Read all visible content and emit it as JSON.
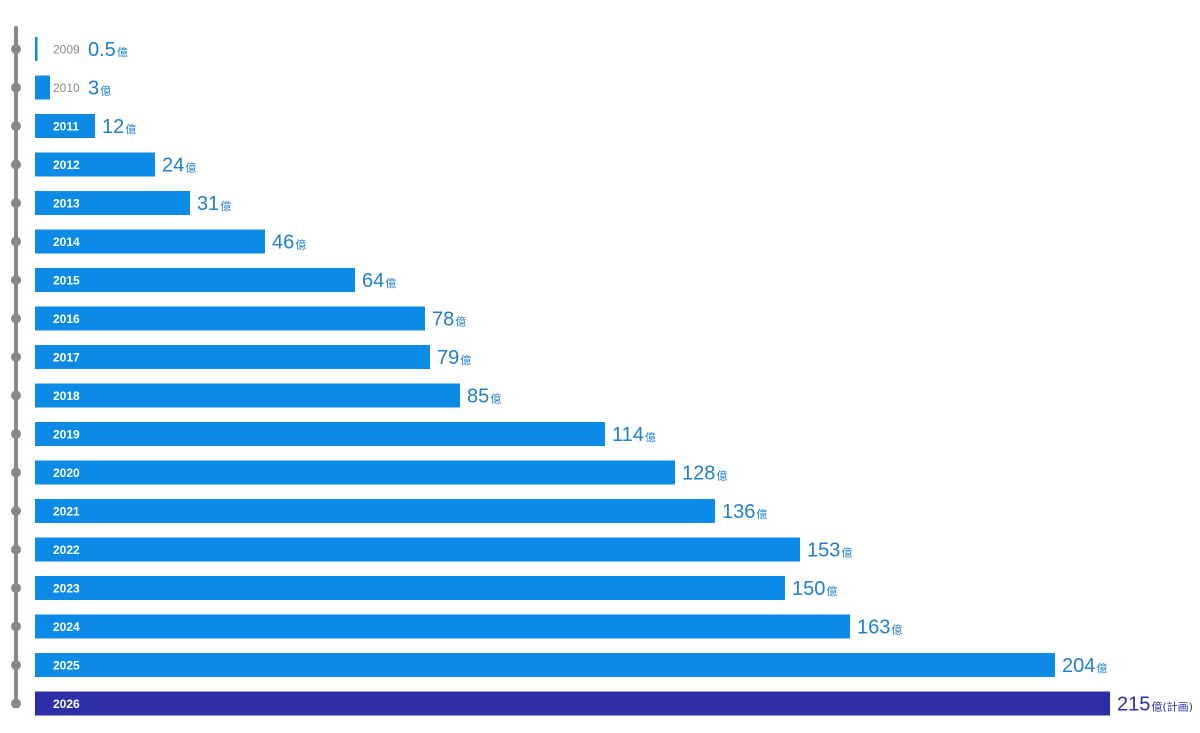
{
  "chart_data": {
    "type": "bar",
    "orientation": "horizontal",
    "unit": "億",
    "note_last": "(計画)",
    "categories": [
      "2009",
      "2010",
      "2011",
      "2012",
      "2013",
      "2014",
      "2015",
      "2016",
      "2017",
      "2018",
      "2019",
      "2020",
      "2021",
      "2022",
      "2023",
      "2024",
      "2025",
      "2026"
    ],
    "values": [
      0.5,
      3,
      12,
      24,
      31,
      46,
      64,
      78,
      79,
      85,
      114,
      128,
      136,
      153,
      150,
      163,
      204,
      215
    ],
    "value_labels": [
      "0.5",
      "3",
      "12",
      "24",
      "31",
      "46",
      "64",
      "78",
      "79",
      "85",
      "114",
      "128",
      "136",
      "153",
      "150",
      "163",
      "204",
      "215"
    ],
    "colors": {
      "bar": "#0b8be6",
      "highlight": "#2e2ea8",
      "label": "#1e7fcf",
      "highlight_label": "#2e2ea8",
      "axis": "#888888"
    },
    "grid": false,
    "legend": "none"
  }
}
